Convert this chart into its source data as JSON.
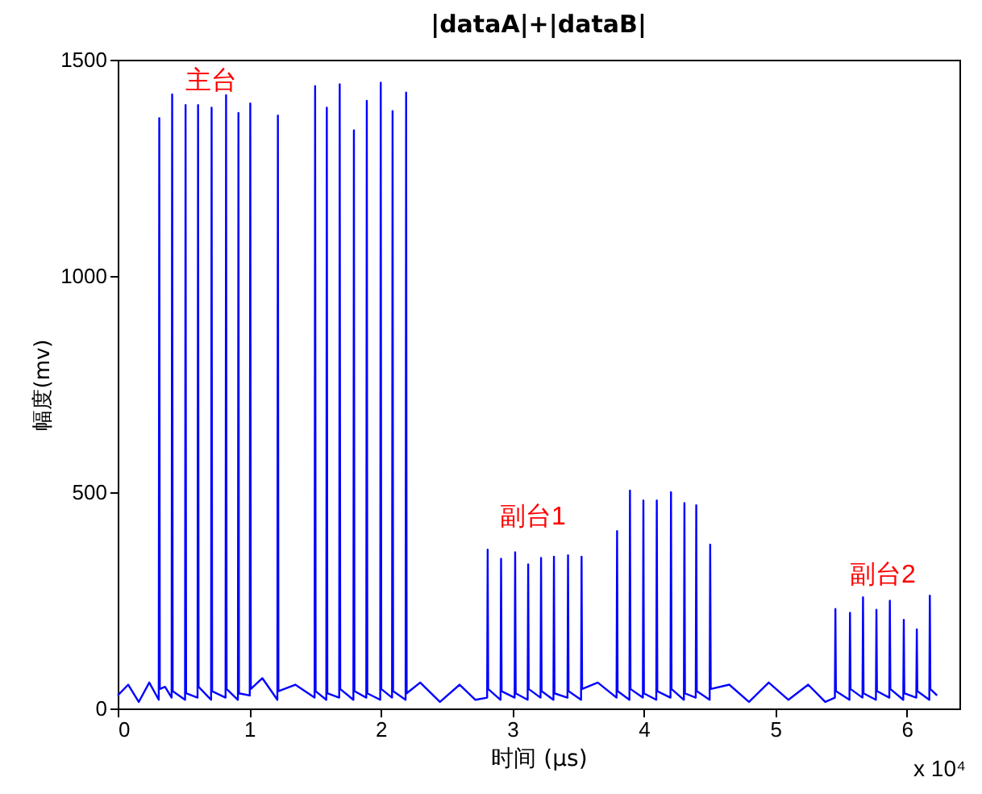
{
  "chart_data": {
    "type": "line",
    "title": "|dataA|+|dataB|",
    "xlabel": "时间 (μs)",
    "ylabel": "幅度(mv)",
    "xlim": [
      0,
      6.4
    ],
    "xticks": [
      0,
      1,
      2,
      3,
      4,
      5,
      6
    ],
    "ylim": [
      0,
      1500
    ],
    "yticks": [
      0,
      500,
      1000,
      1500
    ],
    "annotations": [
      "主台",
      "副台1",
      "副台2",
      "x 10⁴"
    ],
    "series": [
      {
        "color": "#0000ff",
        "x": [
          0,
          0.08,
          0.16,
          0.24,
          0.312,
          0.316,
          0.32,
          0.36,
          0.41,
          0.414,
          0.418,
          0.512,
          0.516,
          0.52,
          0.607,
          0.611,
          0.615,
          0.71,
          0.714,
          0.718,
          0.82,
          0.824,
          0.828,
          0.914,
          0.918,
          0.922,
          1.004,
          1.008,
          1.012,
          1.1,
          1.214,
          1.218,
          1.222,
          1.35,
          1.497,
          1.501,
          1.505,
          1.586,
          1.59,
          1.594,
          1.684,
          1.688,
          1.692,
          1.792,
          1.796,
          1.8,
          1.89,
          1.894,
          1.898,
          1.996,
          2.0,
          2.004,
          2.086,
          2.09,
          2.094,
          2.189,
          2.193,
          2.197,
          2.3,
          2.45,
          2.6,
          2.72,
          2.809,
          2.813,
          2.817,
          2.911,
          2.915,
          2.919,
          3.018,
          3.022,
          3.026,
          3.117,
          3.121,
          3.125,
          3.215,
          3.219,
          3.223,
          3.313,
          3.317,
          3.321,
          3.42,
          3.424,
          3.428,
          3.523,
          3.527,
          3.531,
          3.65,
          3.793,
          3.797,
          3.801,
          3.891,
          3.895,
          3.899,
          3.993,
          3.997,
          4.001,
          4.095,
          4.099,
          4.103,
          4.203,
          4.207,
          4.211,
          4.305,
          4.309,
          4.313,
          4.395,
          4.399,
          4.403,
          4.501,
          4.505,
          4.509,
          4.65,
          4.8,
          4.95,
          5.1,
          5.25,
          5.38,
          5.453,
          5.457,
          5.461,
          5.564,
          5.568,
          5.572,
          5.663,
          5.667,
          5.671,
          5.765,
          5.769,
          5.773,
          5.867,
          5.871,
          5.875,
          5.973,
          5.977,
          5.981,
          6.072,
          6.076,
          6.08,
          6.171,
          6.175,
          6.179,
          6.23
        ],
        "values": [
          30,
          55,
          15,
          60,
          20,
          1365,
          45,
          50,
          25,
          1420,
          40,
          20,
          1395,
          35,
          25,
          1395,
          50,
          20,
          1389,
          40,
          25,
          1418,
          45,
          20,
          1377,
          35,
          30,
          1399,
          45,
          70,
          20,
          1371,
          40,
          55,
          25,
          1439,
          40,
          20,
          1389,
          35,
          25,
          1443,
          45,
          20,
          1337,
          40,
          25,
          1405,
          35,
          20,
          1447,
          45,
          25,
          1381,
          40,
          20,
          1424,
          35,
          60,
          15,
          55,
          20,
          25,
          367,
          45,
          20,
          346,
          40,
          25,
          361,
          35,
          20,
          333,
          45,
          25,
          348,
          40,
          20,
          351,
          35,
          25,
          354,
          40,
          20,
          351,
          45,
          60,
          25,
          410,
          40,
          20,
          504,
          45,
          25,
          481,
          35,
          20,
          481,
          40,
          25,
          500,
          45,
          20,
          475,
          35,
          25,
          470,
          40,
          20,
          379,
          45,
          55,
          15,
          60,
          20,
          55,
          15,
          25,
          230,
          40,
          20,
          221,
          45,
          25,
          257,
          35,
          20,
          228,
          40,
          25,
          249,
          45,
          20,
          205,
          35,
          25,
          183,
          40,
          20,
          261,
          45,
          30
        ]
      }
    ]
  }
}
